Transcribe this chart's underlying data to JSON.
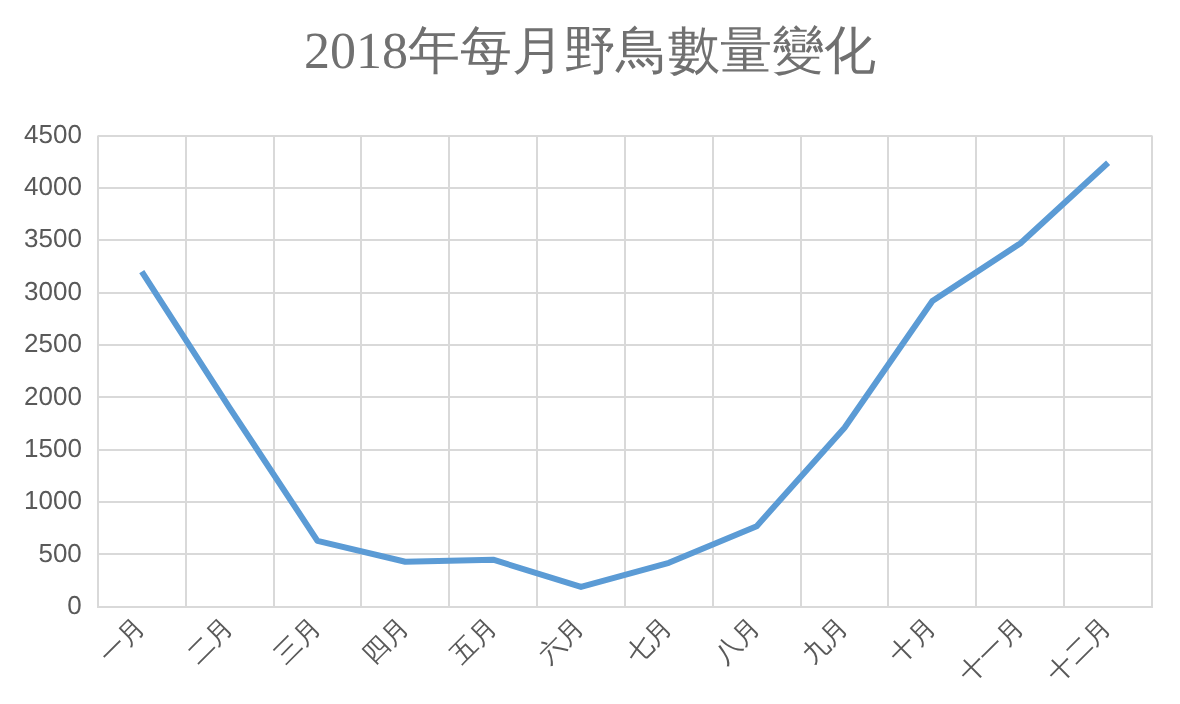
{
  "chart_data": {
    "type": "line",
    "title": "2018年每月野鳥數量變化",
    "categories": [
      "一月",
      "二月",
      "三月",
      "四月",
      "五月",
      "六月",
      "七月",
      "八月",
      "九月",
      "十月",
      "十一月",
      "十二月"
    ],
    "series": [
      {
        "color": "#5b9bd5",
        "values": [
          3200,
          1900,
          630,
          430,
          450,
          190,
          420,
          770,
          1710,
          2920,
          3470,
          4240
        ]
      }
    ],
    "ylim": [
      0,
      4500
    ],
    "yticks": [
      0,
      500,
      1000,
      1500,
      2000,
      2500,
      3000,
      3500,
      4000,
      4500
    ],
    "grid": true,
    "legend": false,
    "marker": "none",
    "line_style": "solid"
  }
}
